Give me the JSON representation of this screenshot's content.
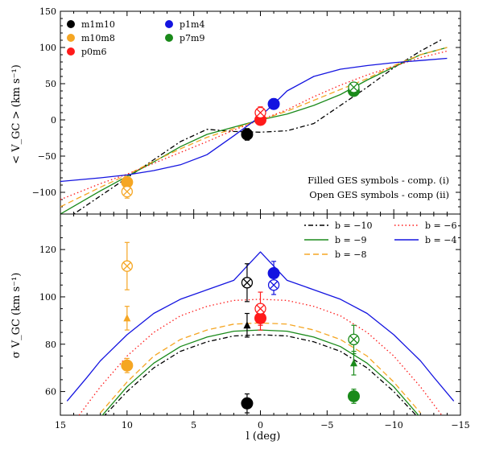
{
  "chart_data": [
    {
      "type": "line",
      "panel": "top",
      "ylabel": "< V_GC > (km s⁻¹)",
      "xlim": [
        15,
        -15
      ],
      "ylim": [
        -130,
        150
      ],
      "yticks": [
        150,
        100,
        50,
        0,
        -50,
        -100
      ],
      "ytick_labels": [
        "150",
        "100",
        "50",
        "0",
        "−50",
        "−100"
      ],
      "grid": false,
      "legend_position": "top-left",
      "legend": [
        {
          "name": "m1m10",
          "color": "#000000"
        },
        {
          "name": "m10m8",
          "color": "#f5a623"
        },
        {
          "name": "p0m6",
          "color": "#ff1a1a"
        },
        {
          "name": "p1m4",
          "color": "#1414e0"
        },
        {
          "name": "p7m9",
          "color": "#1a8a1a"
        }
      ],
      "annotations": [
        "Filled GES symbols - comp. (i)",
        "Open GES symbols - comp (ii)"
      ],
      "series": [
        {
          "name": "b = −10",
          "color": "#000000",
          "style": "dashdot",
          "x": [
            14,
            12,
            10,
            8,
            6,
            4,
            2,
            0,
            -2,
            -4,
            -6,
            -8,
            -10,
            -12,
            -13.7
          ],
          "y": [
            -130,
            -105,
            -80,
            -55,
            -30,
            -13,
            -16,
            -17,
            -15,
            -5,
            20,
            45,
            72,
            95,
            112
          ]
        },
        {
          "name": "b = −9",
          "color": "#1a8a1a",
          "style": "solid",
          "x": [
            15,
            12,
            10,
            8,
            6,
            4,
            2,
            0,
            -2,
            -4,
            -6,
            -8,
            -10,
            -12,
            -14
          ],
          "y": [
            -130,
            -98,
            -78,
            -58,
            -37,
            -20,
            -10,
            0,
            8,
            20,
            35,
            55,
            73,
            90,
            100
          ]
        },
        {
          "name": "b = −8",
          "color": "#f5a623",
          "style": "dashed",
          "x": [
            15,
            12,
            10,
            8,
            6,
            4,
            2,
            0,
            -2,
            -4,
            -6,
            -8,
            -10,
            -12,
            -14
          ],
          "y": [
            -120,
            -93,
            -76,
            -57,
            -40,
            -24,
            -12,
            0,
            12,
            27,
            42,
            57,
            75,
            90,
            100
          ]
        },
        {
          "name": "b = −6",
          "color": "#ff1a1a",
          "style": "dotted",
          "x": [
            15,
            12,
            10,
            8,
            6,
            4,
            2,
            0,
            -2,
            -4,
            -6,
            -8,
            -10,
            -12,
            -14
          ],
          "y": [
            -110,
            -88,
            -75,
            -60,
            -45,
            -30,
            -14,
            0,
            14,
            32,
            48,
            62,
            74,
            86,
            95
          ]
        },
        {
          "name": "b = −4",
          "color": "#1414e0",
          "style": "solid",
          "x": [
            15,
            12,
            10,
            8,
            6,
            4,
            2,
            0,
            -1,
            -2,
            -4,
            -6,
            -8,
            -10,
            -12,
            -14
          ],
          "y": [
            -85,
            -80,
            -76,
            -70,
            -62,
            -48,
            -22,
            5,
            22,
            40,
            60,
            70,
            75,
            79,
            82,
            85
          ]
        }
      ],
      "points": [
        {
          "field": "m1m10",
          "color": "#000000",
          "marker": "filled-circle",
          "x": 1,
          "y": -20,
          "err": 8
        },
        {
          "field": "m10m8",
          "color": "#f5a623",
          "marker": "filled-circle",
          "x": 10,
          "y": -86,
          "err": 7
        },
        {
          "field": "m10m8",
          "color": "#f5a623",
          "marker": "open-cross",
          "x": 10,
          "y": -99,
          "err": 9
        },
        {
          "field": "p0m6",
          "color": "#ff1a1a",
          "marker": "filled-circle",
          "x": 0,
          "y": 0,
          "err": 6
        },
        {
          "field": "p0m6",
          "color": "#ff1a1a",
          "marker": "open-cross",
          "x": 0,
          "y": 10,
          "err": 8
        },
        {
          "field": "p1m4",
          "color": "#1414e0",
          "marker": "filled-circle",
          "x": -1,
          "y": 22,
          "err": 7
        },
        {
          "field": "p7m9",
          "color": "#1a8a1a",
          "marker": "filled-circle",
          "x": -7,
          "y": 40,
          "err": 4
        },
        {
          "field": "p7m9",
          "color": "#1a8a1a",
          "marker": "open-cross",
          "x": -7,
          "y": 45,
          "err": 6
        }
      ]
    },
    {
      "type": "line",
      "panel": "bottom",
      "xlabel": "l (deg)",
      "ylabel": "σ V_GC (km s⁻¹)",
      "xlim": [
        15,
        -15
      ],
      "ylim": [
        50,
        135
      ],
      "xticks": [
        15,
        10,
        5,
        0,
        -5,
        -10,
        -15
      ],
      "xtick_labels": [
        "15",
        "10",
        "5",
        "0",
        "−5",
        "−10",
        "−15"
      ],
      "yticks": [
        60,
        80,
        100,
        120
      ],
      "ytick_labels": [
        "60",
        "80",
        "100",
        "120"
      ],
      "grid": false,
      "legend_position": "top-right",
      "legend": [
        {
          "name": "b = −10",
          "color": "#000000",
          "style": "dashdot"
        },
        {
          "name": "b = −6",
          "color": "#ff1a1a",
          "style": "dotted"
        },
        {
          "name": "b = −9",
          "color": "#1a8a1a",
          "style": "solid"
        },
        {
          "name": "b = −4",
          "color": "#1414e0",
          "style": "solid"
        },
        {
          "name": "b = −8",
          "color": "#f5a623",
          "style": "dashed"
        }
      ],
      "series": [
        {
          "name": "b = −10",
          "color": "#000000",
          "style": "dashdot",
          "x": [
            12,
            10,
            8,
            6,
            4,
            2,
            0,
            -2,
            -4,
            -6,
            -8,
            -10,
            -12
          ],
          "y": [
            48,
            60,
            70,
            77,
            81,
            83.5,
            84,
            83.5,
            81,
            77,
            70,
            60,
            48
          ]
        },
        {
          "name": "b = −9",
          "color": "#1a8a1a",
          "style": "solid",
          "x": [
            12,
            10,
            8,
            6,
            4,
            2,
            0,
            -2,
            -4,
            -6,
            -8,
            -10,
            -12
          ],
          "y": [
            49,
            62,
            72,
            79,
            83,
            85.5,
            86,
            85.5,
            83,
            79,
            72,
            62,
            49
          ]
        },
        {
          "name": "b = −8",
          "color": "#f5a623",
          "style": "dashed",
          "x": [
            12,
            10,
            8,
            6,
            4,
            2,
            0,
            -2,
            -4,
            -6,
            -8,
            -10,
            -12
          ],
          "y": [
            51,
            64,
            75,
            82,
            86,
            88.5,
            89,
            88.5,
            86,
            82,
            75,
            64,
            51
          ]
        },
        {
          "name": "b = −6",
          "color": "#ff1a1a",
          "style": "dotted",
          "x": [
            13.6,
            12,
            10,
            8,
            6,
            4,
            2,
            0,
            -2,
            -4,
            -6,
            -8,
            -10,
            -12,
            -13.6
          ],
          "y": [
            50,
            62,
            75,
            85,
            92,
            96,
            98.5,
            99,
            98.5,
            96,
            92,
            85,
            75,
            62,
            50
          ]
        },
        {
          "name": "b = −4",
          "color": "#1414e0",
          "style": "solid",
          "x": [
            14.5,
            13,
            12,
            10,
            8,
            6,
            4,
            2,
            1,
            0,
            -1,
            -2,
            -4,
            -6,
            -8,
            -10,
            -12,
            -13,
            -14.5
          ],
          "y": [
            56,
            66,
            73,
            84,
            93,
            99,
            103,
            107,
            113,
            119,
            113,
            107,
            103,
            99,
            93,
            84,
            73,
            66,
            56
          ]
        }
      ],
      "points": [
        {
          "field": "m1m10",
          "color": "#000000",
          "marker": "filled-circle",
          "x": 1,
          "y": 55,
          "err": 4
        },
        {
          "field": "m1m10",
          "color": "#000000",
          "marker": "open-cross",
          "x": 1,
          "y": 106,
          "err": 8
        },
        {
          "field": "m1m10",
          "color": "#000000",
          "marker": "triangle",
          "x": 1,
          "y": 88,
          "err": 5
        },
        {
          "field": "m10m8",
          "color": "#f5a623",
          "marker": "filled-circle",
          "x": 10,
          "y": 71,
          "err": 3
        },
        {
          "field": "m10m8",
          "color": "#f5a623",
          "marker": "open-cross",
          "x": 10,
          "y": 113,
          "err": 10
        },
        {
          "field": "m10m8",
          "color": "#f5a623",
          "marker": "triangle",
          "x": 10,
          "y": 91,
          "err": 5
        },
        {
          "field": "p0m6",
          "color": "#ff1a1a",
          "marker": "filled-circle",
          "x": 0,
          "y": 91,
          "err": 5
        },
        {
          "field": "p0m6",
          "color": "#ff1a1a",
          "marker": "open-cross",
          "x": 0,
          "y": 95,
          "err": 7
        },
        {
          "field": "p1m4",
          "color": "#1414e0",
          "marker": "filled-circle",
          "x": -1,
          "y": 110,
          "err": 5
        },
        {
          "field": "p1m4",
          "color": "#1414e0",
          "marker": "open-cross",
          "x": -1,
          "y": 105,
          "err": 4
        },
        {
          "field": "p7m9",
          "color": "#1a8a1a",
          "marker": "filled-circle",
          "x": -7,
          "y": 58,
          "err": 3
        },
        {
          "field": "p7m9",
          "color": "#1a8a1a",
          "marker": "open-cross",
          "x": -7,
          "y": 82,
          "err": 6
        },
        {
          "field": "p7m9",
          "color": "#1a8a1a",
          "marker": "triangle",
          "x": -7,
          "y": 72,
          "err": 5
        }
      ]
    }
  ]
}
